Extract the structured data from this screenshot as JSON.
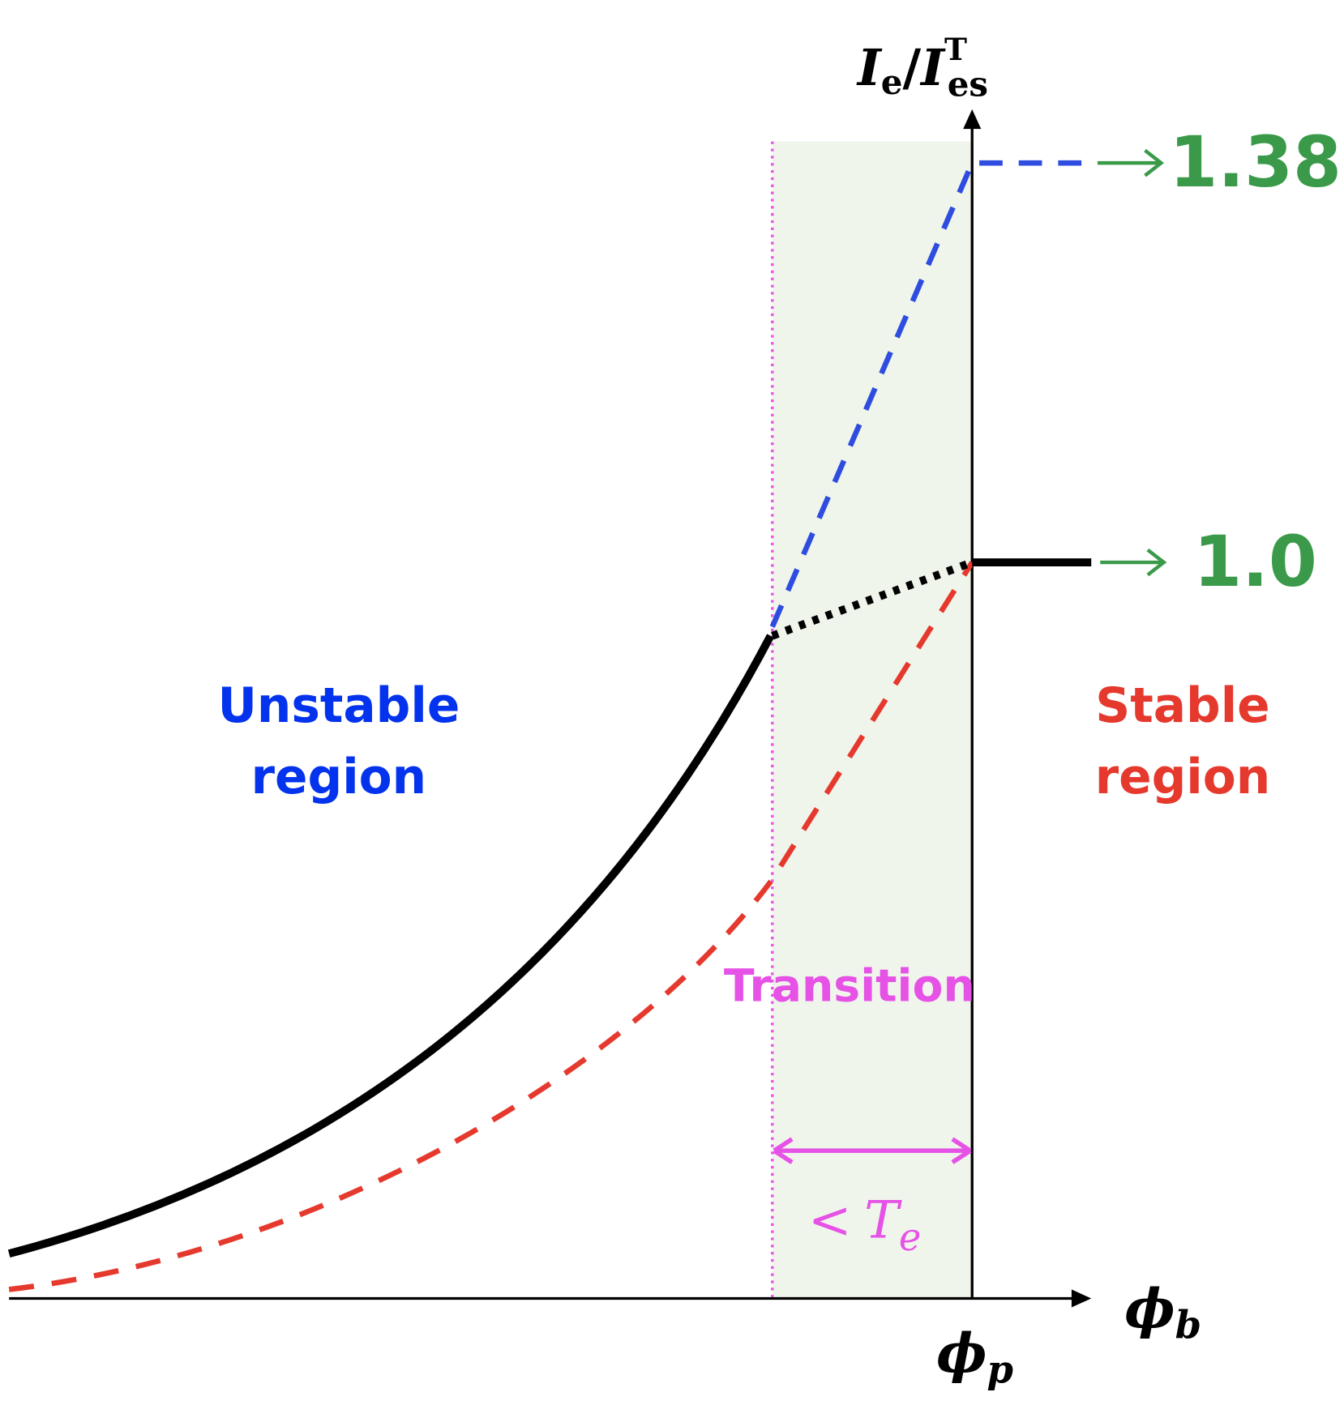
{
  "axes": {
    "y_label": {
      "main": "I",
      "main_sub": "e",
      "slash": "/",
      "ref": "I",
      "ref_sub": "es",
      "ref_sup": "T"
    },
    "x_label": {
      "symbol": "ϕ",
      "sub": "b"
    },
    "x_marker": {
      "symbol": "ϕ",
      "sub": "p"
    }
  },
  "limits": {
    "upper": "1.38",
    "lower": "1.0"
  },
  "regions": {
    "unstable": [
      "Unstable",
      "region"
    ],
    "stable": [
      "Stable",
      "region"
    ],
    "transition": "Transition",
    "width": {
      "symbol": "<",
      "var": "T",
      "sub": "e"
    }
  }
}
